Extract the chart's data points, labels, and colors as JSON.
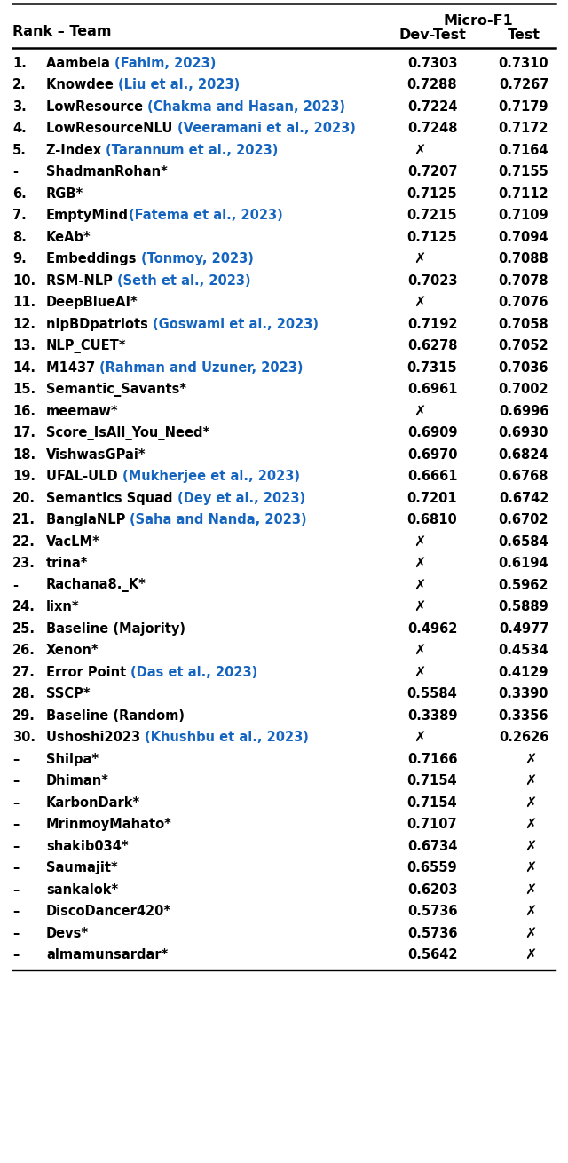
{
  "title": "Micro-F1",
  "col_header_rank": "Rank – Team",
  "col_header_dev": "Dev-Test",
  "col_header_test": "Test",
  "rows": [
    {
      "rank": "1.",
      "team_black": "Aambela ",
      "team_blue": "(Fahim, 2023)",
      "dev": "0.7303",
      "test": "0.7310"
    },
    {
      "rank": "2.",
      "team_black": "Knowdee ",
      "team_blue": "(Liu et al., 2023)",
      "dev": "0.7288",
      "test": "0.7267"
    },
    {
      "rank": "3.",
      "team_black": "LowResource ",
      "team_blue": "(Chakma and Hasan, 2023)",
      "dev": "0.7224",
      "test": "0.7179"
    },
    {
      "rank": "4.",
      "team_black": "LowResourceNLU ",
      "team_blue": "(Veeramani et al., 2023)",
      "dev": "0.7248",
      "test": "0.7172"
    },
    {
      "rank": "5.",
      "team_black": "Z-Index ",
      "team_blue": "(Tarannum et al., 2023)",
      "dev": "X",
      "test": "0.7164"
    },
    {
      "rank": "-",
      "team_black": "ShadmanRohan*",
      "team_blue": "",
      "dev": "0.7207",
      "test": "0.7155"
    },
    {
      "rank": "6.",
      "team_black": "RGB*",
      "team_blue": "",
      "dev": "0.7125",
      "test": "0.7112"
    },
    {
      "rank": "7.",
      "team_black": "EmptyMind",
      "team_blue": "(Fatema et al., 2023)",
      "dev": "0.7215",
      "test": "0.7109"
    },
    {
      "rank": "8.",
      "team_black": "KeAb*",
      "team_blue": "",
      "dev": "0.7125",
      "test": "0.7094"
    },
    {
      "rank": "9.",
      "team_black": "Embeddings ",
      "team_blue": "(Tonmoy, 2023)",
      "dev": "X",
      "test": "0.7088"
    },
    {
      "rank": "10.",
      "team_black": "RSM-NLP ",
      "team_blue": "(Seth et al., 2023)",
      "dev": "0.7023",
      "test": "0.7078"
    },
    {
      "rank": "11.",
      "team_black": "DeepBlueAI*",
      "team_blue": "",
      "dev": "X",
      "test": "0.7076"
    },
    {
      "rank": "12.",
      "team_black": "nlpBDpatriots ",
      "team_blue": "(Goswami et al., 2023)",
      "dev": "0.7192",
      "test": "0.7058"
    },
    {
      "rank": "13.",
      "team_black": "NLP_CUET*",
      "team_blue": "",
      "dev": "0.6278",
      "test": "0.7052"
    },
    {
      "rank": "14.",
      "team_black": "M1437 ",
      "team_blue": "(Rahman and Uzuner, 2023)",
      "dev": "0.7315",
      "test": "0.7036"
    },
    {
      "rank": "15.",
      "team_black": "Semantic_Savants*",
      "team_blue": "",
      "dev": "0.6961",
      "test": "0.7002"
    },
    {
      "rank": "16.",
      "team_black": "meemaw*",
      "team_blue": "",
      "dev": "X",
      "test": "0.6996"
    },
    {
      "rank": "17.",
      "team_black": "Score_IsAll_You_Need*",
      "team_blue": "",
      "dev": "0.6909",
      "test": "0.6930"
    },
    {
      "rank": "18.",
      "team_black": "VishwasGPai*",
      "team_blue": "",
      "dev": "0.6970",
      "test": "0.6824"
    },
    {
      "rank": "19.",
      "team_black": "UFAL-ULD ",
      "team_blue": "(Mukherjee et al., 2023)",
      "dev": "0.6661",
      "test": "0.6768"
    },
    {
      "rank": "20.",
      "team_black": "Semantics Squad ",
      "team_blue": "(Dey et al., 2023)",
      "dev": "0.7201",
      "test": "0.6742"
    },
    {
      "rank": "21.",
      "team_black": "BanglaNLP ",
      "team_blue": "(Saha and Nanda, 2023)",
      "dev": "0.6810",
      "test": "0.6702"
    },
    {
      "rank": "22.",
      "team_black": "VacLM*",
      "team_blue": "",
      "dev": "X",
      "test": "0.6584"
    },
    {
      "rank": "23.",
      "team_black": "trina*",
      "team_blue": "",
      "dev": "X",
      "test": "0.6194"
    },
    {
      "rank": "-",
      "team_black": "Rachana8._K*",
      "team_blue": "",
      "dev": "X",
      "test": "0.5962"
    },
    {
      "rank": "24.",
      "team_black": "lixn*",
      "team_blue": "",
      "dev": "X",
      "test": "0.5889"
    },
    {
      "rank": "25.",
      "team_black": "Baseline (Majority)",
      "team_blue": "",
      "dev": "0.4962",
      "test": "0.4977"
    },
    {
      "rank": "26.",
      "team_black": "Xenon*",
      "team_blue": "",
      "dev": "X",
      "test": "0.4534"
    },
    {
      "rank": "27.",
      "team_black": "Error Point ",
      "team_blue": "(Das et al., 2023)",
      "dev": "X",
      "test": "0.4129"
    },
    {
      "rank": "28.",
      "team_black": "SSCP*",
      "team_blue": "",
      "dev": "0.5584",
      "test": "0.3390"
    },
    {
      "rank": "29.",
      "team_black": "Baseline (Random)",
      "team_blue": "",
      "dev": "0.3389",
      "test": "0.3356"
    },
    {
      "rank": "30.",
      "team_black": "Ushoshi2023 ",
      "team_blue": "(Khushbu et al., 2023)",
      "dev": "X",
      "test": "0.2626"
    },
    {
      "rank": "–",
      "team_black": "Shilpa*",
      "team_blue": "",
      "dev": "0.7166",
      "test": "X"
    },
    {
      "rank": "–",
      "team_black": "Dhiman*",
      "team_blue": "",
      "dev": "0.7154",
      "test": "X"
    },
    {
      "rank": "–",
      "team_black": "KarbonDark*",
      "team_blue": "",
      "dev": "0.7154",
      "test": "X"
    },
    {
      "rank": "–",
      "team_black": "MrinmoyMahato*",
      "team_blue": "",
      "dev": "0.7107",
      "test": "X"
    },
    {
      "rank": "–",
      "team_black": "shakib034*",
      "team_blue": "",
      "dev": "0.6734",
      "test": "X"
    },
    {
      "rank": "–",
      "team_black": "Saumajit*",
      "team_blue": "",
      "dev": "0.6559",
      "test": "X"
    },
    {
      "rank": "–",
      "team_black": "sankalok*",
      "team_blue": "",
      "dev": "0.6203",
      "test": "X"
    },
    {
      "rank": "–",
      "team_black": "DiscoDancer420*",
      "team_blue": "",
      "dev": "0.5736",
      "test": "X"
    },
    {
      "rank": "–",
      "team_black": "Devs*",
      "team_blue": "",
      "dev": "0.5736",
      "test": "X"
    },
    {
      "rank": "–",
      "team_black": "almamunsardar*",
      "team_blue": "",
      "dev": "0.5642",
      "test": "X"
    }
  ],
  "black": "#000000",
  "blue": "#1565c0",
  "bg": "#ffffff",
  "fig_width": 6.4,
  "fig_height": 13.1,
  "font_size": 10.5,
  "header_font_size": 11.5
}
